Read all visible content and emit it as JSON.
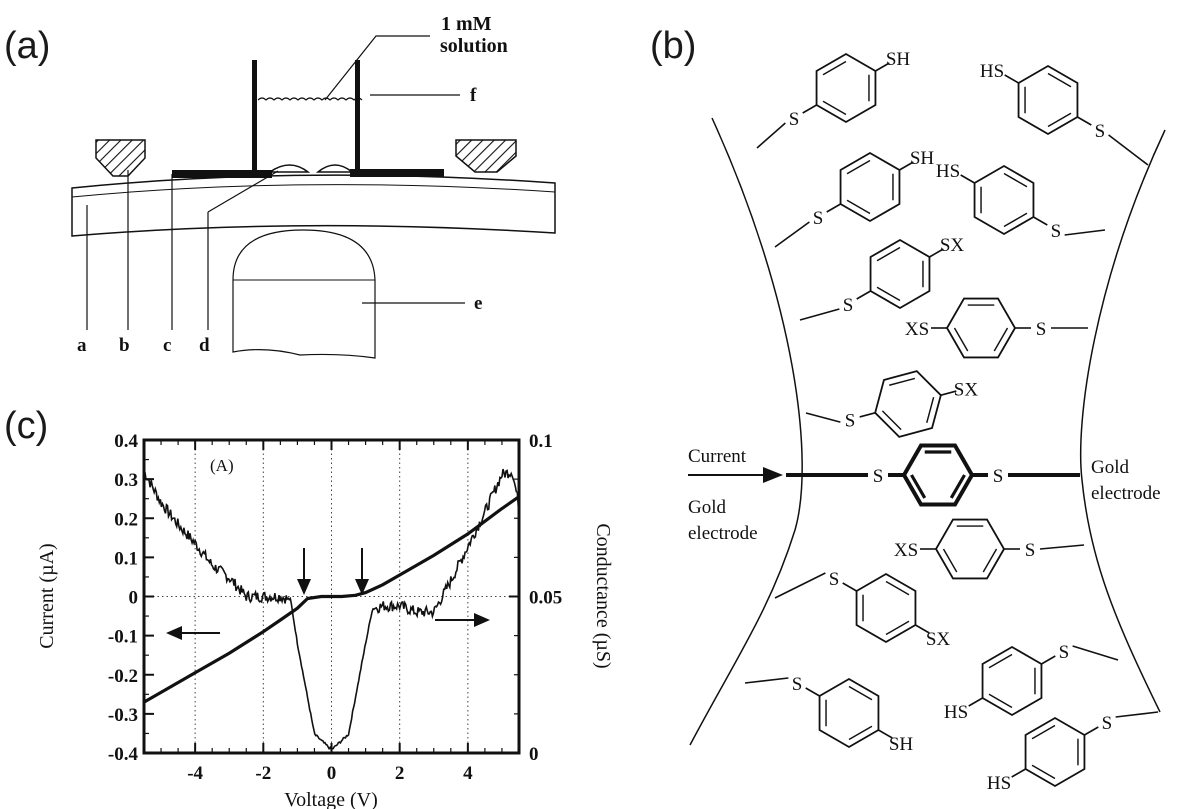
{
  "panel_labels": {
    "a": "(a)",
    "b": "(b)",
    "c": "(c)"
  },
  "panel_a": {
    "solution_label_line1": "1 mM",
    "solution_label_line2": "solution",
    "part_labels": [
      "a",
      "b",
      "c",
      "d",
      "e",
      "f"
    ]
  },
  "panel_b": {
    "current_label": "Current",
    "left_electrode_line1": "Gold",
    "left_electrode_line2": "electrode",
    "right_electrode_line1": "Gold",
    "right_electrode_line2": "electrode",
    "atom_s": "S",
    "group_sh": "SH",
    "group_hs": "HS",
    "group_sx": "SX",
    "group_xs": "XS"
  },
  "chart_data": {
    "type": "line",
    "inset_label": "(A)",
    "xlabel": "Voltage (V)",
    "ylabel_left": "Current (µA)",
    "ylabel_right": "Conductance (µS)",
    "xlim": [
      -5.5,
      5.5
    ],
    "ylim_left": [
      -0.4,
      0.4
    ],
    "ylim_right": [
      0,
      0.1
    ],
    "x_ticks": [
      "-4",
      "-2",
      "0",
      "2",
      "4"
    ],
    "y_ticks_left": [
      "0.4",
      "0.3",
      "0.2",
      "0.1",
      "0",
      "-0.1",
      "-0.2",
      "-0.3",
      "-0.4"
    ],
    "y_ticks_right": [
      "0.1",
      "0.05",
      "0"
    ],
    "grid": true,
    "series": [
      {
        "axis": "left",
        "x": [
          -5.5,
          -5,
          -4,
          -3,
          -2,
          -1.5,
          -1,
          -0.7,
          -0.3,
          0,
          0.3,
          0.7,
          1,
          1.5,
          2,
          3,
          4,
          5,
          5.5
        ],
        "y": [
          -0.27,
          -0.245,
          -0.195,
          -0.145,
          -0.09,
          -0.06,
          -0.03,
          -0.005,
          0,
          0,
          0,
          0.003,
          0.01,
          0.03,
          0.055,
          0.105,
          0.16,
          0.225,
          0.255
        ]
      },
      {
        "axis": "right",
        "x": [
          -5.5,
          -5,
          -4.5,
          -4,
          -3.5,
          -3,
          -2.5,
          -2,
          -1.5,
          -1.2,
          -1,
          -0.5,
          0,
          0.5,
          1,
          1.2,
          1.5,
          2,
          2.5,
          3,
          3.5,
          4,
          4.5,
          5,
          5.3,
          5.5
        ],
        "y": [
          0.09,
          0.08,
          0.073,
          0.067,
          0.06,
          0.056,
          0.05,
          0.05,
          0.05,
          0.049,
          0.035,
          0.006,
          0.001,
          0.006,
          0.035,
          0.046,
          0.047,
          0.047,
          0.045,
          0.045,
          0.055,
          0.066,
          0.077,
          0.089,
          0.09,
          0.079
        ]
      }
    ]
  }
}
